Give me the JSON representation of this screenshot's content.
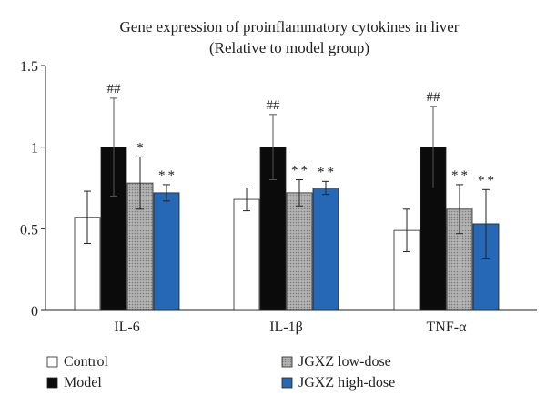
{
  "chart_data": {
    "type": "bar",
    "title_lines": [
      "Gene expression of proinflammatory cytokines in liver",
      "(Relative to model group)"
    ],
    "categories": [
      "IL-6",
      "IL-1β",
      "TNF-α"
    ],
    "ylim": [
      0,
      1.5
    ],
    "yticks": [
      "0",
      "0.5",
      "1",
      "1.5"
    ],
    "ytick_values": [
      0,
      0.5,
      1,
      1.5
    ],
    "grid": false,
    "legend_placement": "bottom",
    "series": [
      {
        "name": "Control",
        "color": "#ffffff",
        "pattern": "none",
        "values": [
          0.57,
          0.68,
          0.49
        ],
        "errors": [
          0.16,
          0.07,
          0.13
        ],
        "marks": [
          "",
          "",
          ""
        ]
      },
      {
        "name": "Model",
        "color": "#0b0b0b",
        "pattern": "none",
        "values": [
          1.0,
          1.0,
          1.0
        ],
        "errors": [
          0.3,
          0.2,
          0.25
        ],
        "marks": [
          "##",
          "##",
          "##"
        ]
      },
      {
        "name": "JGXZ low-dose",
        "color": "#a8a8a8",
        "pattern": "dots",
        "values": [
          0.78,
          0.72,
          0.62
        ],
        "errors": [
          0.16,
          0.08,
          0.15
        ],
        "marks": [
          "*",
          "**",
          "**"
        ]
      },
      {
        "name": "JGXZ high-dose",
        "color": "#2668b5",
        "pattern": "none",
        "values": [
          0.72,
          0.75,
          0.53
        ],
        "errors": [
          0.05,
          0.04,
          0.21
        ],
        "marks": [
          "**",
          "**",
          "**"
        ]
      }
    ]
  }
}
